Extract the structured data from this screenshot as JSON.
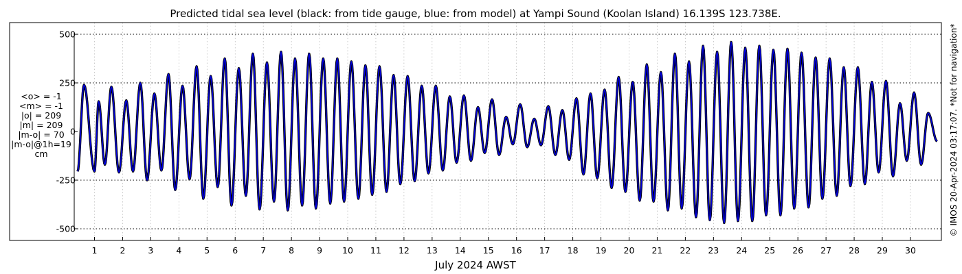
{
  "chart_data": {
    "type": "line",
    "title": "Predicted tidal sea level (black: from tide gauge, blue: from model) at Yampi Sound (Koolan Island) 16.139S 123.738E.",
    "xlabel": "July 2024 AWST",
    "ylabel": "",
    "xlim": [
      0.28,
      31.1
    ],
    "ylim": [
      -560,
      560
    ],
    "yticks": [
      -500,
      -250,
      0,
      250,
      500
    ],
    "xticks": [
      1,
      2,
      3,
      4,
      5,
      6,
      7,
      8,
      9,
      10,
      11,
      12,
      13,
      14,
      15,
      16,
      17,
      18,
      19,
      20,
      21,
      22,
      23,
      24,
      25,
      26,
      27,
      28,
      29,
      30
    ],
    "grid": true,
    "side_note": "© IMOS 20-Apr-2024 03:17:07. *Not for navigation*",
    "series": [
      {
        "name": "tide gauge",
        "color": "#000000",
        "tides": [
          [
            0.63,
            240,
            1.0,
            -205
          ],
          [
            1.15,
            155,
            1.37,
            -170
          ],
          [
            1.6,
            230,
            1.87,
            -210
          ],
          [
            2.13,
            160,
            2.37,
            -205
          ],
          [
            2.63,
            250,
            2.87,
            -250
          ],
          [
            3.13,
            195,
            3.38,
            -200
          ],
          [
            3.63,
            295,
            3.87,
            -300
          ],
          [
            4.13,
            235,
            4.38,
            -245
          ],
          [
            4.63,
            335,
            4.87,
            -345
          ],
          [
            5.13,
            285,
            5.38,
            -285
          ],
          [
            5.63,
            375,
            5.87,
            -380
          ],
          [
            6.13,
            325,
            6.38,
            -330
          ],
          [
            6.63,
            400,
            6.87,
            -400
          ],
          [
            7.13,
            355,
            7.38,
            -360
          ],
          [
            7.63,
            410,
            7.87,
            -405
          ],
          [
            8.13,
            375,
            8.38,
            -380
          ],
          [
            8.63,
            400,
            8.87,
            -395
          ],
          [
            9.13,
            375,
            9.38,
            -370
          ],
          [
            9.63,
            375,
            9.87,
            -360
          ],
          [
            10.13,
            360,
            10.38,
            -345
          ],
          [
            10.63,
            340,
            10.87,
            -325
          ],
          [
            11.13,
            335,
            11.38,
            -310
          ],
          [
            11.63,
            290,
            11.87,
            -270
          ],
          [
            12.13,
            285,
            12.38,
            -255
          ],
          [
            12.63,
            235,
            12.87,
            -215
          ],
          [
            13.13,
            235,
            13.38,
            -200
          ],
          [
            13.63,
            180,
            13.87,
            -160
          ],
          [
            14.13,
            185,
            14.38,
            -150
          ],
          [
            14.63,
            125,
            14.87,
            -110
          ],
          [
            15.13,
            165,
            15.38,
            -120
          ],
          [
            15.63,
            75,
            15.87,
            -65
          ],
          [
            16.13,
            140,
            16.38,
            -80
          ],
          [
            16.63,
            65,
            16.87,
            -70
          ],
          [
            17.13,
            130,
            17.38,
            -120
          ],
          [
            17.63,
            110,
            17.87,
            -145
          ],
          [
            18.13,
            170,
            18.38,
            -220
          ],
          [
            18.63,
            195,
            18.87,
            -240
          ],
          [
            19.13,
            215,
            19.38,
            -290
          ],
          [
            19.63,
            280,
            19.87,
            -310
          ],
          [
            20.13,
            255,
            20.38,
            -355
          ],
          [
            20.63,
            345,
            20.87,
            -360
          ],
          [
            21.13,
            305,
            21.38,
            -405
          ],
          [
            21.63,
            400,
            21.87,
            -395
          ],
          [
            22.13,
            360,
            22.38,
            -440
          ],
          [
            22.63,
            440,
            22.87,
            -455
          ],
          [
            23.13,
            410,
            23.38,
            -470
          ],
          [
            23.63,
            460,
            23.87,
            -460
          ],
          [
            24.13,
            430,
            24.38,
            -460
          ],
          [
            24.63,
            440,
            24.87,
            -430
          ],
          [
            25.13,
            420,
            25.38,
            -430
          ],
          [
            25.63,
            425,
            25.87,
            -395
          ],
          [
            26.13,
            405,
            26.38,
            -390
          ],
          [
            26.63,
            380,
            26.87,
            -345
          ],
          [
            27.13,
            375,
            27.38,
            -330
          ],
          [
            27.63,
            330,
            27.87,
            -280
          ],
          [
            28.13,
            330,
            28.38,
            -270
          ],
          [
            28.63,
            255,
            28.87,
            -210
          ],
          [
            29.13,
            260,
            29.38,
            -230
          ],
          [
            29.63,
            145,
            29.87,
            -150
          ],
          [
            30.13,
            200,
            30.38,
            -170
          ],
          [
            30.63,
            95,
            30.95,
            -50
          ]
        ]
      },
      {
        "name": "model",
        "color": "#0000dd",
        "tides": "same as tide gauge"
      }
    ],
    "stats": [
      "<o> = -1",
      "<m> = -1",
      "|o| = 209",
      "|m| = 209",
      "|m-o| = 70",
      "|m-o|@1h=19",
      "cm"
    ]
  }
}
